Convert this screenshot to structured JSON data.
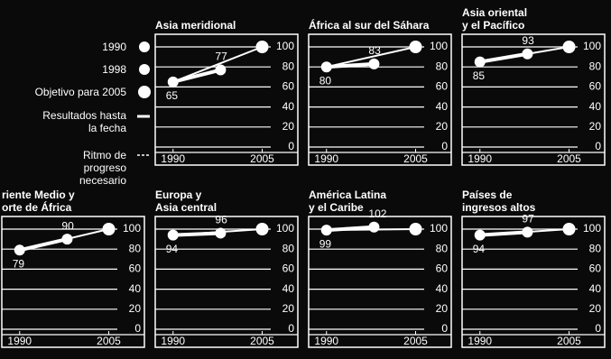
{
  "legend": [
    "1990",
    "1998",
    "Objetivo para 2005",
    "Resultados hasta la fecha",
    "Ritmo de progreso necesario"
  ],
  "chart_data": [
    {
      "type": "line",
      "title": "Asia meridional",
      "x": [
        1990,
        1998,
        2005
      ],
      "values": [
        65,
        77,
        100
      ],
      "xlim": [
        1987,
        2011
      ],
      "xticks": [
        1990,
        2005
      ],
      "ylim": [
        0,
        100
      ],
      "yticks": [
        0,
        20,
        40,
        60,
        80,
        100
      ]
    },
    {
      "type": "line",
      "title": "África al sur del Sáhara",
      "x": [
        1990,
        1998,
        2005
      ],
      "values": [
        80,
        83,
        100
      ],
      "xlim": [
        1987,
        2011
      ],
      "xticks": [
        1990,
        2005
      ],
      "ylim": [
        0,
        100
      ],
      "yticks": [
        0,
        20,
        40,
        60,
        80,
        100
      ]
    },
    {
      "type": "line",
      "title": "Asia oriental\ny el Pacífico",
      "x": [
        1990,
        1998,
        2005
      ],
      "values": [
        85,
        93,
        100
      ],
      "xlim": [
        1987,
        2011
      ],
      "xticks": [
        1990,
        2005
      ],
      "ylim": [
        0,
        100
      ],
      "yticks": [
        0,
        20,
        40,
        60,
        80,
        100
      ]
    },
    {
      "type": "line",
      "title": "riente Medio y\norte de África",
      "x": [
        1990,
        1998,
        2005
      ],
      "values": [
        79,
        90,
        100
      ],
      "xlim": [
        1987,
        2011
      ],
      "xticks": [
        1990,
        2005
      ],
      "ylim": [
        0,
        100
      ],
      "yticks": [
        0,
        20,
        40,
        60,
        80,
        100
      ]
    },
    {
      "type": "line",
      "title": "Europa y\nAsia central",
      "x": [
        1990,
        1998,
        2005
      ],
      "values": [
        94,
        96,
        100
      ],
      "xlim": [
        1987,
        2011
      ],
      "xticks": [
        1990,
        2005
      ],
      "ylim": [
        0,
        100
      ],
      "yticks": [
        0,
        20,
        40,
        60,
        80,
        100
      ]
    },
    {
      "type": "line",
      "title": "América Latina\ny el Caribe",
      "x": [
        1990,
        1998,
        2005
      ],
      "values": [
        99,
        102,
        100
      ],
      "xlim": [
        1987,
        2011
      ],
      "xticks": [
        1990,
        2005
      ],
      "ylim": [
        0,
        100
      ],
      "yticks": [
        0,
        20,
        40,
        60,
        80,
        100
      ]
    },
    {
      "type": "line",
      "title": "Países de\ningresos altos",
      "x": [
        1990,
        1998,
        2005
      ],
      "values": [
        94,
        97,
        100
      ],
      "xlim": [
        1987,
        2011
      ],
      "xticks": [
        1990,
        2005
      ],
      "ylim": [
        0,
        100
      ],
      "yticks": [
        0,
        20,
        40,
        60,
        80,
        100
      ]
    }
  ]
}
